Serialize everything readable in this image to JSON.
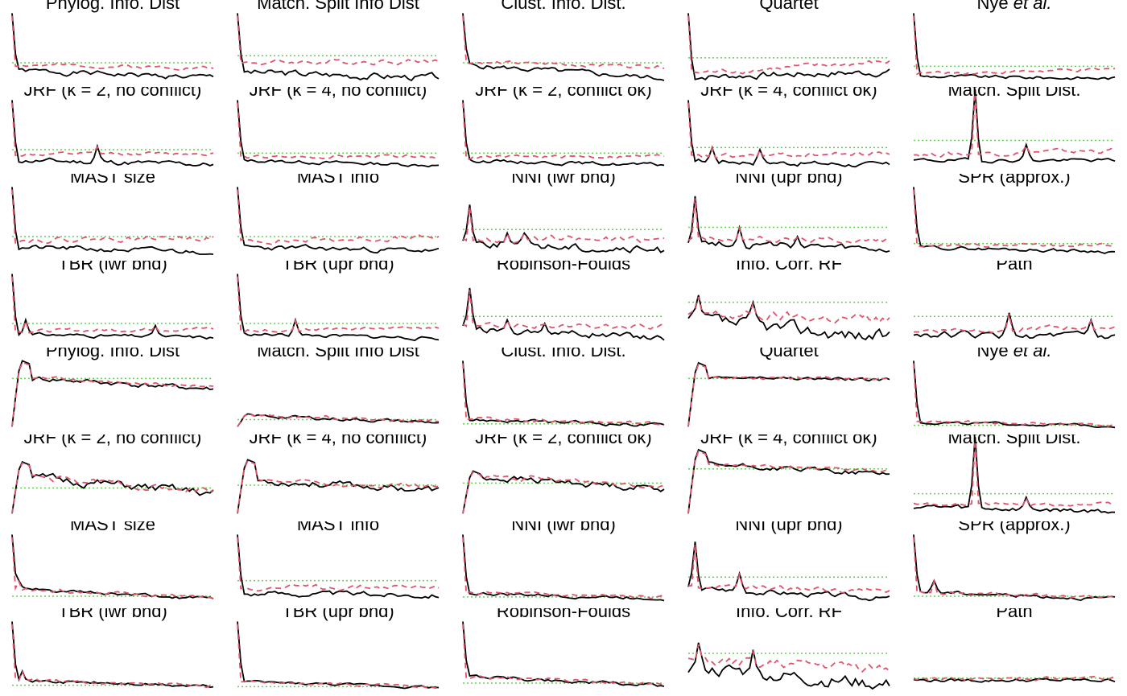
{
  "chart_data": {
    "type": "line",
    "layout": {
      "rows": 8,
      "cols": 5
    },
    "series_styles": {
      "solid": {
        "color": "#000000",
        "dash": "none"
      },
      "dashed": {
        "color": "#DF536B",
        "dash": "dashed"
      },
      "ref": {
        "color": "#61D04F",
        "dash": "dotted"
      }
    },
    "x_points": 60,
    "ylim": [
      0,
      1
    ],
    "panels": [
      {
        "title": "Phylog. Info. Dist",
        "ref": 0.25,
        "solid": {
          "spikes": [
            [
              0,
              0.95
            ]
          ],
          "base": 0.14,
          "end": 0.04,
          "noise": 0.03,
          "seed": 1
        },
        "dashed": {
          "base": 0.22,
          "end": 0.18,
          "noise": 0.02,
          "seed": 2
        }
      },
      {
        "title": "Match. Split Info Dist",
        "ref": 0.35,
        "solid": {
          "spikes": [
            [
              0,
              0.95
            ]
          ],
          "base": 0.12,
          "end": 0.04,
          "noise": 0.04,
          "seed": 3
        },
        "dashed": {
          "base": 0.25,
          "end": 0.28,
          "noise": 0.03,
          "seed": 4
        }
      },
      {
        "title": "Clust. Info. Dist.",
        "ref": 0.25,
        "solid": {
          "spikes": [
            [
              0,
              0.95
            ]
          ],
          "base": 0.22,
          "end": 0.03,
          "noise": 0.03,
          "seed": 5
        },
        "dashed": {
          "base": 0.26,
          "end": 0.2,
          "noise": 0.02,
          "seed": 6
        }
      },
      {
        "title": "Quartet",
        "ref": 0.32,
        "solid": {
          "spikes": [
            [
              0,
              0.95
            ]
          ],
          "base": 0.05,
          "end": 0.12,
          "noise": 0.04,
          "seed": 7
        },
        "dashed": {
          "base": 0.1,
          "end": 0.26,
          "noise": 0.03,
          "seed": 8
        }
      },
      {
        "title": "Nye et al.",
        "italic": "et al.",
        "ref": 0.2,
        "solid": {
          "spikes": [
            [
              0,
              0.95
            ]
          ],
          "base": 0.06,
          "end": 0.03,
          "noise": 0.02,
          "seed": 9
        },
        "dashed": {
          "base": 0.1,
          "end": 0.15,
          "noise": 0.02,
          "seed": 10
        }
      },
      {
        "title": "JRF (k = 2, no conflict)",
        "ref": 0.25,
        "solid": {
          "spikes": [
            [
              0,
              0.95
            ],
            [
              25,
              0.3
            ]
          ],
          "base": 0.1,
          "end": 0.04,
          "noise": 0.03,
          "seed": 11
        },
        "dashed": {
          "base": 0.18,
          "end": 0.2,
          "noise": 0.02,
          "seed": 12
        }
      },
      {
        "title": "JRF (k = 4, no conflict)",
        "ref": 0.2,
        "solid": {
          "spikes": [
            [
              0,
              0.95
            ]
          ],
          "base": 0.1,
          "end": 0.03,
          "noise": 0.02,
          "seed": 13
        },
        "dashed": {
          "base": 0.14,
          "end": 0.16,
          "noise": 0.02,
          "seed": 14
        }
      },
      {
        "title": "JRF (k = 2, conflict ok)",
        "ref": 0.2,
        "solid": {
          "spikes": [
            [
              0,
              0.95
            ]
          ],
          "base": 0.1,
          "end": 0.03,
          "noise": 0.02,
          "seed": 15
        },
        "dashed": {
          "base": 0.14,
          "end": 0.16,
          "noise": 0.02,
          "seed": 16
        }
      },
      {
        "title": "JRF (k = 4, conflict ok)",
        "ref": 0.28,
        "solid": {
          "spikes": [
            [
              0,
              0.95
            ],
            [
              7,
              0.28
            ],
            [
              21,
              0.25
            ]
          ],
          "base": 0.1,
          "end": 0.03,
          "noise": 0.03,
          "seed": 17
        },
        "dashed": {
          "base": 0.14,
          "end": 0.2,
          "noise": 0.03,
          "seed": 18
        }
      },
      {
        "title": "Match. Split Dist.",
        "ref": 0.38,
        "solid": {
          "spikes": [
            [
              18,
              1.1
            ],
            [
              33,
              0.32
            ]
          ],
          "base": 0.1,
          "end": 0.1,
          "noise": 0.02,
          "seed": 19
        },
        "dashed": {
          "base": 0.18,
          "end": 0.24,
          "noise": 0.03,
          "seed": 20
        }
      },
      {
        "title": "MAST size",
        "ref": 0.25,
        "solid": {
          "spikes": [
            [
              0,
              0.95
            ]
          ],
          "base": 0.1,
          "end": 0.03,
          "noise": 0.03,
          "seed": 21
        },
        "dashed": {
          "base": 0.2,
          "end": 0.24,
          "noise": 0.03,
          "seed": 22
        }
      },
      {
        "title": "MAST info",
        "ref": 0.25,
        "solid": {
          "spikes": [
            [
              0,
              0.95
            ]
          ],
          "base": 0.1,
          "end": 0.05,
          "noise": 0.03,
          "seed": 23
        },
        "dashed": {
          "base": 0.18,
          "end": 0.24,
          "noise": 0.03,
          "seed": 24
        }
      },
      {
        "title": "NNI (lwr bnd)",
        "ref": 0.35,
        "solid": {
          "spikes": [
            [
              2,
              0.7
            ],
            [
              13,
              0.3
            ],
            [
              18,
              0.3
            ]
          ],
          "base": 0.18,
          "end": 0.04,
          "noise": 0.05,
          "seed": 25
        },
        "dashed": {
          "base": 0.22,
          "end": 0.2,
          "noise": 0.04,
          "seed": 26
        }
      },
      {
        "title": "NNI (upr bnd)",
        "ref": 0.38,
        "solid": {
          "spikes": [
            [
              2,
              0.82
            ],
            [
              15,
              0.38
            ],
            [
              32,
              0.25
            ]
          ],
          "base": 0.18,
          "end": 0.05,
          "noise": 0.04,
          "seed": 27
        },
        "dashed": {
          "base": 0.22,
          "end": 0.2,
          "noise": 0.03,
          "seed": 28
        }
      },
      {
        "title": "SPR (approx.)",
        "ref": 0.15,
        "solid": {
          "spikes": [
            [
              0,
              0.95
            ]
          ],
          "base": 0.1,
          "end": 0.04,
          "noise": 0.02,
          "seed": 29
        },
        "dashed": {
          "base": 0.12,
          "end": 0.13,
          "noise": 0.02,
          "seed": 30
        }
      },
      {
        "title": "TBR (lwr bnd)",
        "ref": 0.25,
        "solid": {
          "spikes": [
            [
              0,
              0.95
            ],
            [
              4,
              0.3
            ],
            [
              42,
              0.22
            ]
          ],
          "base": 0.1,
          "end": 0.05,
          "noise": 0.02,
          "seed": 31
        },
        "dashed": {
          "base": 0.14,
          "end": 0.18,
          "noise": 0.02,
          "seed": 32
        }
      },
      {
        "title": "TBR (upr bnd)",
        "ref": 0.25,
        "solid": {
          "spikes": [
            [
              0,
              0.95
            ],
            [
              17,
              0.3
            ]
          ],
          "base": 0.1,
          "end": 0.04,
          "noise": 0.02,
          "seed": 33
        },
        "dashed": {
          "base": 0.15,
          "end": 0.2,
          "noise": 0.02,
          "seed": 34
        }
      },
      {
        "title": "Robinson-Foulds",
        "ref": 0.35,
        "solid": {
          "spikes": [
            [
              2,
              0.75
            ],
            [
              13,
              0.3
            ],
            [
              24,
              0.25
            ]
          ],
          "base": 0.18,
          "end": 0.05,
          "noise": 0.04,
          "seed": 35
        },
        "dashed": {
          "base": 0.22,
          "end": 0.2,
          "noise": 0.03,
          "seed": 36
        }
      },
      {
        "title": "Info. Corr. RF",
        "ref": 0.55,
        "solid": {
          "spikes": [
            [
              3,
              0.65
            ],
            [
              19,
              0.55
            ]
          ],
          "base": 0.3,
          "end": 0.05,
          "noise": 0.08,
          "seed": 37
        },
        "dashed": {
          "base": 0.38,
          "end": 0.3,
          "noise": 0.06,
          "seed": 38
        }
      },
      {
        "title": "Path",
        "ref": 0.35,
        "solid": {
          "spikes": [
            [
              28,
              0.4
            ],
            [
              52,
              0.3
            ]
          ],
          "base": 0.1,
          "end": 0.05,
          "noise": 0.04,
          "seed": 39
        },
        "dashed": {
          "base": 0.15,
          "end": 0.2,
          "noise": 0.03,
          "seed": 40
        }
      },
      {
        "title": "Phylog. Info. Dist",
        "ref": 0.7,
        "solid": {
          "rise": true,
          "peak": 0.95,
          "base": 0.72,
          "end": 0.55,
          "noise": 0.03,
          "seed": 41
        },
        "dashed": {
          "rise": true,
          "peak": 0.95,
          "base": 0.72,
          "end": 0.58,
          "noise": 0.02,
          "seed": 42
        }
      },
      {
        "title": "Match. Split Info Dist",
        "ref": 0.12,
        "solid": {
          "rise": true,
          "peak": 0.2,
          "base": 0.18,
          "end": 0.08,
          "noise": 0.02,
          "seed": 43
        },
        "dashed": {
          "rise": true,
          "peak": 0.22,
          "base": 0.18,
          "end": 0.1,
          "noise": 0.02,
          "seed": 44
        }
      },
      {
        "title": "Clust. Info. Dist.",
        "ref": 0.06,
        "solid": {
          "spikes": [
            [
              0,
              0.95
            ]
          ],
          "base": 0.12,
          "end": 0.04,
          "noise": 0.02,
          "seed": 45
        },
        "dashed": {
          "base": 0.14,
          "end": 0.06,
          "noise": 0.02,
          "seed": 46
        }
      },
      {
        "title": "Quartet",
        "ref": 0.7,
        "solid": {
          "rise": true,
          "peak": 0.92,
          "base": 0.72,
          "end": 0.68,
          "noise": 0.02,
          "seed": 47
        },
        "dashed": {
          "rise": true,
          "peak": 0.92,
          "base": 0.72,
          "end": 0.7,
          "noise": 0.02,
          "seed": 48
        }
      },
      {
        "title": "Nye et al.",
        "italic": "et al.",
        "ref": 0.04,
        "solid": {
          "spikes": [
            [
              0,
              0.95
            ]
          ],
          "base": 0.08,
          "end": 0.03,
          "noise": 0.015,
          "seed": 49
        },
        "dashed": {
          "base": 0.1,
          "end": 0.04,
          "noise": 0.015,
          "seed": 50
        }
      },
      {
        "title": "JRF (k = 2, no conflict)",
        "ref": 0.38,
        "solid": {
          "rise": true,
          "peak": 0.75,
          "base": 0.55,
          "end": 0.3,
          "noise": 0.05,
          "seed": 51
        },
        "dashed": {
          "rise": true,
          "peak": 0.75,
          "base": 0.55,
          "end": 0.34,
          "noise": 0.04,
          "seed": 52
        }
      },
      {
        "title": "JRF (k = 4, no conflict)",
        "ref": 0.42,
        "solid": {
          "rise": true,
          "peak": 0.78,
          "base": 0.5,
          "end": 0.35,
          "noise": 0.04,
          "seed": 53
        },
        "dashed": {
          "rise": true,
          "peak": 0.78,
          "base": 0.5,
          "end": 0.38,
          "noise": 0.03,
          "seed": 54
        }
      },
      {
        "title": "JRF (k = 2, conflict ok)",
        "ref": 0.45,
        "solid": {
          "rise": true,
          "peak": 0.62,
          "base": 0.55,
          "end": 0.38,
          "noise": 0.04,
          "seed": 55
        },
        "dashed": {
          "rise": true,
          "peak": 0.62,
          "base": 0.55,
          "end": 0.42,
          "noise": 0.03,
          "seed": 56
        }
      },
      {
        "title": "JRF (k = 4, conflict ok)",
        "ref": 0.65,
        "solid": {
          "rise": true,
          "peak": 0.92,
          "base": 0.72,
          "end": 0.58,
          "noise": 0.03,
          "seed": 57
        },
        "dashed": {
          "rise": true,
          "peak": 0.92,
          "base": 0.72,
          "end": 0.62,
          "noise": 0.02,
          "seed": 58
        }
      },
      {
        "title": "Match. Split Dist.",
        "ref": 0.3,
        "solid": {
          "spikes": [
            [
              18,
              1.1
            ],
            [
              33,
              0.25
            ]
          ],
          "base": 0.12,
          "end": 0.05,
          "noise": 0.03,
          "seed": 59
        },
        "dashed": {
          "base": 0.15,
          "end": 0.15,
          "noise": 0.02,
          "seed": 60
        }
      },
      {
        "title": "MAST size",
        "ref": 0.08,
        "solid": {
          "spikes": [
            [
              0,
              0.95
            ],
            [
              2,
              0.3
            ]
          ],
          "base": 0.18,
          "end": 0.04,
          "noise": 0.02,
          "seed": 61
        },
        "dashed": {
          "base": 0.18,
          "end": 0.06,
          "noise": 0.02,
          "seed": 62
        }
      },
      {
        "title": "MAST info",
        "ref": 0.3,
        "solid": {
          "spikes": [
            [
              0,
              0.95
            ]
          ],
          "base": 0.12,
          "end": 0.1,
          "noise": 0.03,
          "seed": 63
        },
        "dashed": {
          "base": 0.2,
          "end": 0.22,
          "noise": 0.03,
          "seed": 64
        }
      },
      {
        "title": "NNI (lwr bnd)",
        "ref": 0.07,
        "solid": {
          "spikes": [
            [
              0,
              0.95
            ]
          ],
          "base": 0.12,
          "end": 0.05,
          "noise": 0.02,
          "seed": 65
        },
        "dashed": {
          "base": 0.13,
          "end": 0.06,
          "noise": 0.02,
          "seed": 66
        }
      },
      {
        "title": "NNI (upr bnd)",
        "ref": 0.35,
        "solid": {
          "spikes": [
            [
              2,
              0.85
            ],
            [
              15,
              0.4
            ]
          ],
          "base": 0.2,
          "end": 0.05,
          "noise": 0.03,
          "seed": 67
        },
        "dashed": {
          "base": 0.22,
          "end": 0.15,
          "noise": 0.03,
          "seed": 68
        }
      },
      {
        "title": "SPR (approx.)",
        "ref": 0.08,
        "solid": {
          "spikes": [
            [
              0,
              0.95
            ],
            [
              6,
              0.3
            ]
          ],
          "base": 0.15,
          "end": 0.04,
          "noise": 0.02,
          "seed": 69
        },
        "dashed": {
          "base": 0.15,
          "end": 0.06,
          "noise": 0.02,
          "seed": 70
        }
      },
      {
        "title": "TBR (lwr bnd)",
        "ref": 0.05,
        "solid": {
          "spikes": [
            [
              0,
              0.95
            ],
            [
              3,
              0.25
            ]
          ],
          "base": 0.12,
          "end": 0.03,
          "noise": 0.02,
          "seed": 71
        },
        "dashed": {
          "base": 0.12,
          "end": 0.05,
          "noise": 0.02,
          "seed": 72
        }
      },
      {
        "title": "TBR (upr bnd)",
        "ref": 0.03,
        "solid": {
          "spikes": [
            [
              0,
              0.95
            ]
          ],
          "base": 0.1,
          "end": 0.02,
          "noise": 0.015,
          "seed": 73
        },
        "dashed": {
          "base": 0.1,
          "end": 0.03,
          "noise": 0.015,
          "seed": 74
        }
      },
      {
        "title": "Robinson-Foulds",
        "ref": 0.08,
        "solid": {
          "spikes": [
            [
              0,
              0.95
            ]
          ],
          "base": 0.18,
          "end": 0.04,
          "noise": 0.02,
          "seed": 75
        },
        "dashed": {
          "base": 0.18,
          "end": 0.06,
          "noise": 0.02,
          "seed": 76
        }
      },
      {
        "title": "Info. Corr. RF",
        "ref": 0.5,
        "solid": {
          "spikes": [
            [
              3,
              0.65
            ],
            [
              19,
              0.55
            ]
          ],
          "base": 0.3,
          "end": 0.05,
          "noise": 0.08,
          "seed": 77
        },
        "dashed": {
          "base": 0.38,
          "end": 0.3,
          "noise": 0.06,
          "seed": 78
        }
      },
      {
        "title": "Path",
        "ref": 0.15,
        "solid": {
          "base": 0.12,
          "end": 0.12,
          "noise": 0.02,
          "seed": 79
        },
        "dashed": {
          "base": 0.14,
          "end": 0.15,
          "noise": 0.02,
          "seed": 80
        }
      }
    ]
  }
}
